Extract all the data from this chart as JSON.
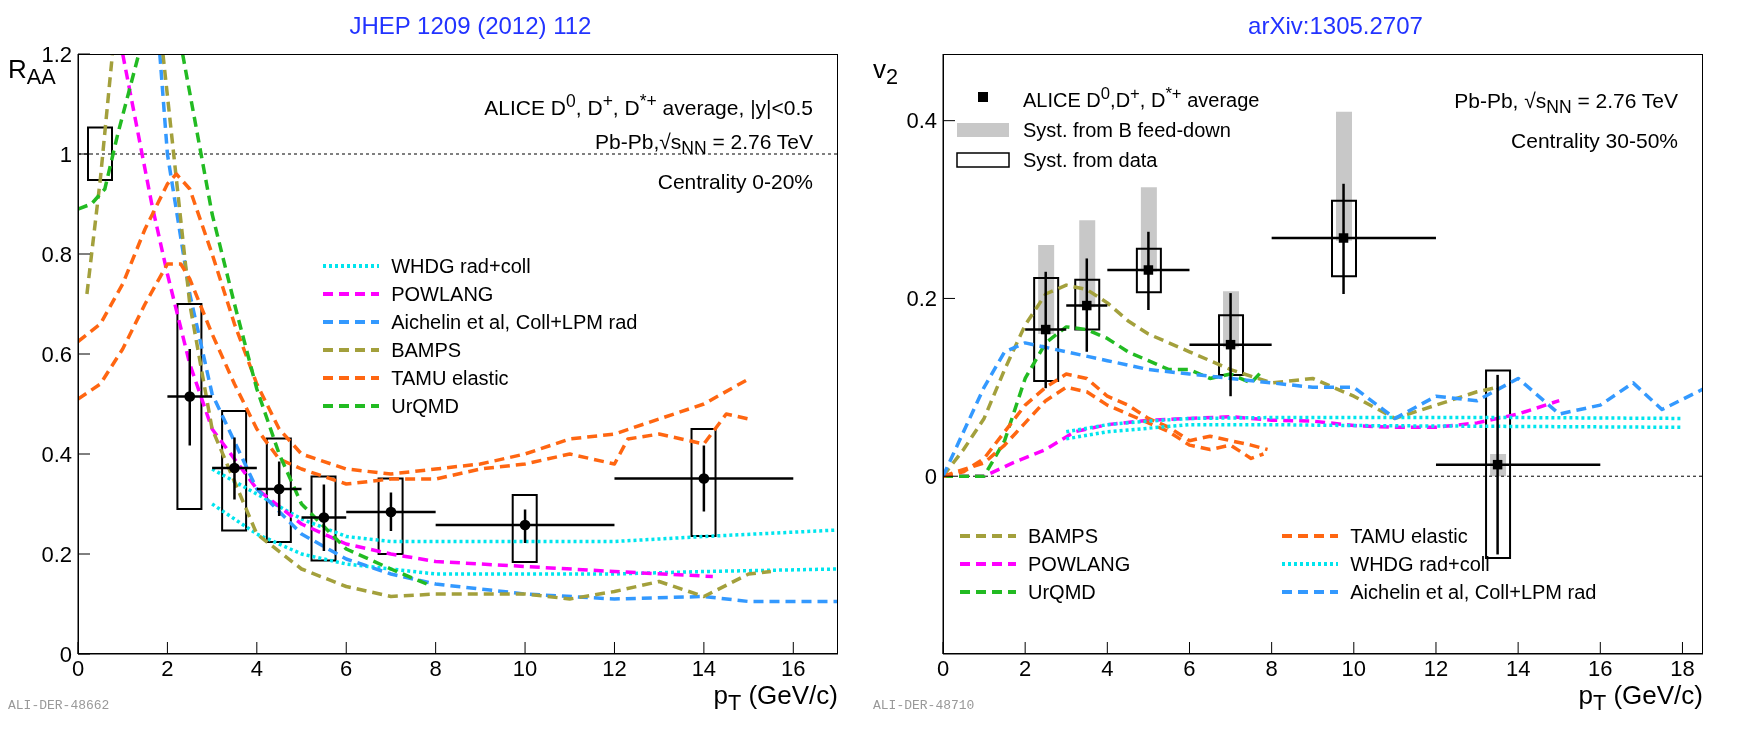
{
  "chart_data": [
    {
      "type": "line",
      "title": "JHEP 1209 (2012) 112",
      "xlabel": "p$_{T}$ (GeV/c)",
      "ylabel": "R$_{AA}$",
      "xlim": [
        0,
        17
      ],
      "ylim": [
        0,
        1.2
      ],
      "xticks": [
        0,
        2,
        4,
        6,
        8,
        10,
        12,
        14,
        16
      ],
      "yticks": [
        0,
        0.2,
        0.4,
        0.6,
        0.8,
        1,
        1.2
      ],
      "legend": "right",
      "annotations": [
        "ALICE D$^{0}$, D$^{+}$, D$^{*+}$ average, |y|<0.5",
        "Pb-Pb,√s$_{NN}$ = 2.76 TeV",
        "Centrality 0-20%",
        "ALI-DER-48662"
      ],
      "ref_lines": [
        {
          "axis": "y",
          "value": 1,
          "line_style": "dotted",
          "color": "#000000"
        }
      ],
      "series": [
        {
          "type": "bar",
          "color": "#000000",
          "line_style": "solid",
          "x": [
            0.5,
            2.5,
            3.5,
            4.5,
            5.5,
            7,
            10,
            14
          ],
          "base": [
            0.948,
            0.29,
            0.247,
            0.224,
            0.187,
            0.2,
            0.184,
            0.236
          ],
          "values": [
            0.105,
            0.41,
            0.239,
            0.207,
            0.168,
            0.151,
            0.134,
            0.214
          ]
        },
        {
          "name": "WHDG rad+coll",
          "color": "#00e5ee",
          "line_style": "dotted",
          "x": [
            3,
            4,
            5,
            6,
            7,
            8,
            10,
            12,
            14,
            17
          ],
          "values": [
            0.37,
            0.32,
            0.27,
            0.235,
            0.225,
            0.225,
            0.225,
            0.225,
            0.235,
            0.248
          ]
        },
        {
          "color": "#00e5ee",
          "line_style": "dotted",
          "x": [
            3,
            4,
            5,
            6,
            7,
            8,
            10,
            12,
            14,
            17
          ],
          "values": [
            0.3,
            0.24,
            0.2,
            0.18,
            0.17,
            0.16,
            0.16,
            0.16,
            0.165,
            0.17
          ]
        },
        {
          "name": "POWLANG",
          "color": "#ff00ff",
          "line_style": "dashed",
          "x": [
            1,
            1.65,
            2,
            2.5,
            3,
            4,
            5,
            6,
            7,
            8,
            10,
            12,
            14.2
          ],
          "values": [
            1.2,
            0.9,
            0.76,
            0.58,
            0.45,
            0.33,
            0.26,
            0.22,
            0.2,
            0.185,
            0.175,
            0.165,
            0.155
          ]
        },
        {
          "name": "Aichelin et al, Coll+LPM rad",
          "color": "#3399ff",
          "line_style": "dashed",
          "x": [
            1.83,
            2,
            2.5,
            3,
            4,
            5,
            6,
            7,
            8,
            10,
            12,
            14,
            15,
            17
          ],
          "values": [
            1.2,
            1,
            0.72,
            0.52,
            0.33,
            0.24,
            0.19,
            0.16,
            0.14,
            0.12,
            0.11,
            0.115,
            0.105,
            0.105
          ]
        },
        {
          "name": "BAMPS",
          "color": "#a3a03c",
          "line_style": "dashed",
          "x": [
            0.2,
            0.5,
            0.77,
            1.3,
            1.9,
            2.5,
            3,
            4,
            5,
            6,
            7,
            8,
            10,
            11,
            12,
            13,
            14,
            15,
            15.5
          ],
          "values": [
            0.72,
            0.95,
            1.2,
            null,
            1.2,
            0.7,
            0.45,
            0.24,
            0.17,
            0.135,
            0.115,
            0.12,
            0.12,
            0.11,
            0.125,
            0.145,
            0.115,
            0.16,
            0.165
          ]
        },
        {
          "name": "TAMU elastic",
          "color": "#ff6611",
          "line_style": "dashed",
          "x": [
            0,
            0.5,
            1,
            1.5,
            2,
            2.2,
            2.5,
            3,
            3.5,
            4,
            4.5,
            5,
            6,
            7,
            8,
            9,
            10,
            11,
            12,
            13,
            14,
            15
          ],
          "values": [
            0.625,
            0.66,
            0.74,
            0.85,
            0.94,
            0.96,
            0.93,
            0.8,
            0.66,
            0.54,
            0.45,
            0.4,
            0.37,
            0.36,
            0.37,
            0.38,
            0.4,
            0.43,
            0.44,
            0.47,
            0.5,
            0.55
          ]
        },
        {
          "color": "#ff6611",
          "line_style": "dashed",
          "x": [
            0,
            0.5,
            1,
            1.5,
            2,
            2.3,
            2.5,
            3,
            3.5,
            4,
            4.5,
            5,
            6,
            7,
            8,
            9,
            10,
            11,
            12,
            12.3,
            13,
            14,
            14.5,
            15
          ],
          "values": [
            0.51,
            0.54,
            0.61,
            0.7,
            0.78,
            0.78,
            0.75,
            0.64,
            0.54,
            0.45,
            0.39,
            0.37,
            0.34,
            0.35,
            0.35,
            0.37,
            0.38,
            0.4,
            0.38,
            0.43,
            0.44,
            0.42,
            0.48,
            0.47
          ]
        },
        {
          "name": "UrQMD",
          "color": "#22bb22",
          "line_style": "dashed",
          "x": [
            0,
            0.3,
            0.6,
            0.89,
            1.36,
            1.8,
            2.34,
            3,
            3.5,
            4,
            4.5,
            5,
            6,
            7,
            7.8
          ],
          "values": [
            0.89,
            0.9,
            0.93,
            1.04,
            1.2,
            null,
            1.2,
            0.88,
            0.7,
            0.53,
            0.4,
            0.3,
            0.21,
            0.17,
            0.14
          ]
        },
        {
          "type": "scatter",
          "color": "#000000",
          "marker": "circle",
          "x": [
            2.5,
            3.5,
            4.5,
            5.5,
            7,
            10,
            14
          ],
          "values": [
            0.515,
            0.372,
            0.33,
            0.273,
            0.284,
            0.258,
            0.351
          ],
          "errors": [
            [
              0.417,
              0.61
            ],
            [
              0.309,
              0.433
            ],
            [
              0.276,
              0.385
            ],
            [
              0.206,
              0.339
            ],
            [
              0.246,
              0.323
            ],
            [
              0.222,
              0.289
            ],
            [
              0.285,
              0.417
            ]
          ],
          "xerrors": [
            [
              2,
              3
            ],
            [
              3,
              4
            ],
            [
              4,
              5
            ],
            [
              5,
              6
            ],
            [
              6,
              8
            ],
            [
              8,
              12
            ],
            [
              12,
              16
            ]
          ]
        }
      ]
    },
    {
      "type": "line",
      "title": "arXiv:1305.2707",
      "xlabel": "p$_{T}$ (GeV/c)",
      "ylabel": "v$_{2}$",
      "xlim": [
        0,
        18.5
      ],
      "ylim": [
        -0.2,
        0.475
      ],
      "xticks": [
        0,
        2,
        4,
        6,
        8,
        10,
        12,
        14,
        16,
        18
      ],
      "yticks": [
        0,
        0.2,
        0.4
      ],
      "legend": "top left",
      "annotations": [
        "Pb-Pb, √s$_{NN}$ = 2.76 TeV",
        "Centrality 30-50%",
        "ALI-DER-48710"
      ],
      "ref_lines": [
        {
          "axis": "y",
          "value": 0,
          "line_style": "dotted",
          "color": "#000000"
        }
      ],
      "series": [
        {
          "name": "Syst. from B feed-down",
          "type": "bar",
          "color": "#c8c8c8",
          "x": [
            2.5,
            3.5,
            5,
            7,
            9.75,
            13.5
          ],
          "base": [
            0.16,
            0.19,
            0.23,
            0.145,
            0.265,
            0
          ],
          "values": [
            0.1,
            0.098,
            0.095,
            0.063,
            0.145,
            0.025
          ]
        },
        {
          "name": "Syst. from data",
          "type": "bar",
          "color": "#000000",
          "line_style": "solid",
          "x": [
            2.5,
            3.5,
            5,
            7,
            9.75,
            13.5
          ],
          "base": [
            0.107,
            0.165,
            0.207,
            0.114,
            0.225,
            -0.092
          ],
          "values": [
            0.116,
            0.056,
            0.049,
            0.067,
            0.085,
            0.211
          ]
        },
        {
          "name": "BAMPS",
          "color": "#a3a03c",
          "line_style": "dashed",
          "x": [
            0,
            0.5,
            1,
            1.5,
            2,
            2.5,
            3,
            3.5,
            4,
            4.5,
            5,
            6,
            7,
            8,
            9,
            10,
            11,
            12,
            13,
            13.5
          ],
          "values": [
            0,
            0.03,
            0.065,
            0.12,
            0.17,
            0.205,
            0.215,
            0.21,
            0.195,
            0.175,
            0.16,
            0.14,
            0.12,
            0.105,
            0.11,
            0.09,
            0.065,
            0.08,
            0.095,
            0.1
          ]
        },
        {
          "name": "POWLANG",
          "color": "#ff00ff",
          "line_style": "dashed",
          "x": [
            0,
            1,
            1.7,
            2.5,
            3.2,
            4,
            5,
            6,
            7,
            8,
            9,
            10,
            11,
            12,
            13,
            14,
            15
          ],
          "values": [
            0,
            0,
            0.015,
            0.03,
            0.05,
            0.058,
            0.063,
            0.065,
            0.067,
            0.063,
            0.062,
            0.057,
            0.055,
            0.055,
            0.06,
            0.07,
            0.085
          ]
        },
        {
          "name": "UrQMD",
          "color": "#22bb22",
          "line_style": "dashed",
          "x": [
            0,
            1,
            1.5,
            2,
            2.5,
            3,
            3.5,
            4,
            4.5,
            5,
            5.5,
            6,
            6.5,
            7,
            7.5,
            7.8
          ],
          "values": [
            0,
            0,
            0.04,
            0.11,
            0.15,
            0.168,
            0.165,
            0.155,
            0.14,
            0.13,
            0.12,
            0.12,
            0.11,
            0.115,
            0.105,
            0.12
          ]
        },
        {
          "name": "TAMU elastic",
          "color": "#ff6611",
          "line_style": "dashed",
          "x": [
            0,
            0.5,
            1,
            1.5,
            2,
            2.5,
            3,
            3.5,
            4,
            4.5,
            5,
            5.5,
            6,
            6.5,
            7,
            7.5,
            7.9
          ],
          "values": [
            0,
            0.005,
            0.02,
            0.05,
            0.08,
            0.1,
            0.115,
            0.11,
            0.09,
            0.08,
            0.065,
            0.055,
            0.04,
            0.045,
            0.04,
            0.035,
            0.03
          ]
        },
        {
          "color": "#ff6611",
          "line_style": "dashed",
          "x": [
            0,
            1,
            1.5,
            2,
            2.5,
            3,
            3.5,
            4,
            5,
            5.5,
            6,
            6.5,
            7,
            7.5,
            7.8
          ],
          "values": [
            0,
            0.015,
            0.035,
            0.06,
            0.085,
            0.1,
            0.095,
            0.08,
            0.06,
            0.05,
            0.035,
            0.03,
            0.035,
            0.02,
            0.025
          ]
        },
        {
          "name": "WHDG rad+coll",
          "color": "#00e5ee",
          "line_style": "dotted",
          "x": [
            3,
            4,
            5,
            6,
            8,
            10,
            14,
            18
          ],
          "values": [
            0.05,
            0.058,
            0.062,
            0.065,
            0.066,
            0.066,
            0.066,
            0.065
          ]
        },
        {
          "color": "#00e5ee",
          "line_style": "dotted",
          "x": [
            3,
            4,
            5,
            6,
            8,
            10,
            14,
            18
          ],
          "values": [
            0.042,
            0.05,
            0.054,
            0.058,
            0.058,
            0.057,
            0.056,
            0.055
          ]
        },
        {
          "name": "Aichelin et al, Coll+LPM rad",
          "color": "#3399ff",
          "line_style": "dashed",
          "x": [
            0,
            0.5,
            1,
            1.5,
            2,
            3,
            4,
            5,
            6,
            7,
            8,
            9,
            10,
            11,
            12,
            13,
            14,
            15,
            16,
            16.8,
            17.5,
            18.5
          ],
          "values": [
            0,
            0.05,
            0.1,
            0.14,
            0.15,
            0.14,
            0.13,
            0.12,
            0.115,
            0.11,
            0.105,
            0.1,
            0.1,
            0.065,
            0.09,
            0.085,
            0.11,
            0.07,
            0.08,
            0.105,
            0.075,
            0.098
          ]
        },
        {
          "name": "ALICE D$^{0}$,D$^{+}$, D$^{*+}$ average",
          "type": "scatter",
          "color": "#000000",
          "marker": "square",
          "x": [
            2.5,
            3.5,
            5,
            7,
            9.75,
            13.5
          ],
          "values": [
            0.165,
            0.192,
            0.232,
            0.148,
            0.268,
            0.013
          ],
          "errors": [
            [
              0.099,
              0.23
            ],
            [
              0.14,
              0.245
            ],
            [
              0.187,
              0.275
            ],
            [
              0.09,
              0.206
            ],
            [
              0.205,
              0.329
            ],
            [
              -0.088,
              0.114
            ]
          ],
          "xerrors": [
            [
              2,
              3
            ],
            [
              3,
              4
            ],
            [
              4,
              6
            ],
            [
              6,
              8
            ],
            [
              8,
              12
            ],
            [
              12,
              16
            ]
          ]
        }
      ]
    }
  ]
}
